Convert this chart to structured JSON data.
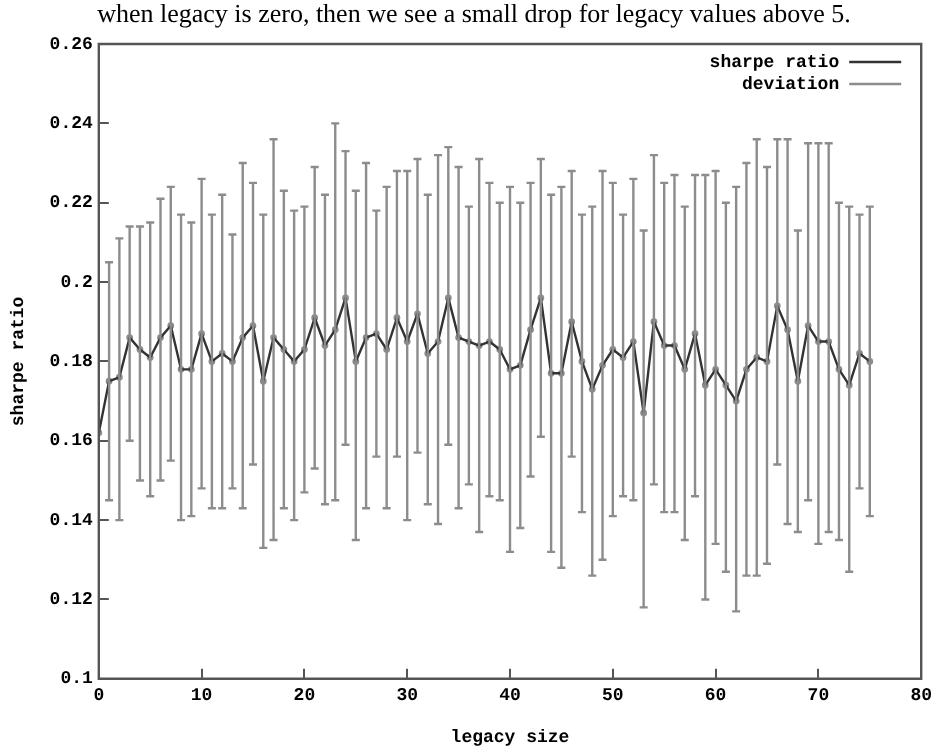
{
  "chart_data": {
    "type": "line",
    "xlabel": "legacy size",
    "ylabel": "sharpe ratio",
    "annotations": [
      "when legacy is zero, then we see a small drop for legacy values above 5."
    ],
    "x": [
      0,
      1,
      2,
      3,
      4,
      5,
      6,
      7,
      8,
      9,
      10,
      11,
      12,
      13,
      14,
      15,
      16,
      17,
      18,
      19,
      20,
      21,
      22,
      23,
      24,
      25,
      26,
      27,
      28,
      29,
      30,
      31,
      32,
      33,
      34,
      35,
      36,
      37,
      38,
      39,
      40,
      41,
      42,
      43,
      44,
      45,
      46,
      47,
      48,
      49,
      50,
      51,
      52,
      53,
      54,
      55,
      56,
      57,
      58,
      59,
      60,
      61,
      62,
      63,
      64,
      65,
      66,
      67,
      68,
      69,
      70,
      71,
      72,
      73,
      74,
      75
    ],
    "xlim": [
      0,
      80
    ],
    "xticks": [
      0,
      10,
      20,
      30,
      40,
      50,
      60,
      70,
      80
    ],
    "ylim": [
      0.1,
      0.26
    ],
    "yticks": [
      0.1,
      0.12,
      0.14,
      0.16,
      0.18,
      0.2,
      0.22,
      0.24,
      0.26
    ],
    "grid": false,
    "legend": "top right",
    "series": [
      {
        "name": "sharpe ratio",
        "color": "#333333",
        "values": [
          0.162,
          0.175,
          0.176,
          0.186,
          0.183,
          0.181,
          0.186,
          0.189,
          0.178,
          0.178,
          0.187,
          0.18,
          0.182,
          0.18,
          0.186,
          0.189,
          0.175,
          0.186,
          0.183,
          0.18,
          0.183,
          0.191,
          0.184,
          0.188,
          0.196,
          0.18,
          0.186,
          0.187,
          0.183,
          0.191,
          0.185,
          0.192,
          0.182,
          0.185,
          0.196,
          0.186,
          0.185,
          0.184,
          0.185,
          0.183,
          0.178,
          0.179,
          0.188,
          0.196,
          0.177,
          0.177,
          0.19,
          0.18,
          0.173,
          0.179,
          0.183,
          0.181,
          0.185,
          0.167,
          0.19,
          0.184,
          0.184,
          0.178,
          0.187,
          0.174,
          0.178,
          0.174,
          0.17,
          0.178,
          0.181,
          0.18,
          0.194,
          0.188,
          0.175,
          0.189,
          0.185,
          0.185,
          0.178,
          0.174,
          0.182,
          0.18
        ]
      },
      {
        "name": "deviation",
        "type": "scatter",
        "color": "#8c8c8c",
        "values": [
          0.162,
          0.175,
          0.176,
          0.186,
          0.183,
          0.181,
          0.186,
          0.189,
          0.178,
          0.178,
          0.187,
          0.18,
          0.182,
          0.18,
          0.186,
          0.189,
          0.175,
          0.186,
          0.183,
          0.18,
          0.183,
          0.191,
          0.184,
          0.188,
          0.196,
          0.18,
          0.186,
          0.187,
          0.183,
          0.191,
          0.185,
          0.192,
          0.182,
          0.185,
          0.196,
          0.186,
          0.185,
          0.184,
          0.185,
          0.183,
          0.178,
          0.179,
          0.188,
          0.196,
          0.177,
          0.177,
          0.19,
          0.18,
          0.173,
          0.179,
          0.183,
          0.181,
          0.185,
          0.167,
          0.19,
          0.184,
          0.184,
          0.178,
          0.187,
          0.174,
          0.178,
          0.174,
          0.17,
          0.178,
          0.181,
          0.18,
          0.194,
          0.188,
          0.175,
          0.189,
          0.185,
          0.185,
          0.178,
          0.174,
          0.182,
          0.18
        ],
        "errors": [
          null,
          [
            0.145,
            0.205
          ],
          [
            0.14,
            0.211
          ],
          [
            0.16,
            0.214
          ],
          [
            0.15,
            0.214
          ],
          [
            0.146,
            0.215
          ],
          [
            0.15,
            0.221
          ],
          [
            0.155,
            0.224
          ],
          [
            0.14,
            0.217
          ],
          [
            0.141,
            0.215
          ],
          [
            0.148,
            0.226
          ],
          [
            0.143,
            0.217
          ],
          [
            0.143,
            0.222
          ],
          [
            0.148,
            0.212
          ],
          [
            0.143,
            0.23
          ],
          [
            0.154,
            0.225
          ],
          [
            0.133,
            0.217
          ],
          [
            0.135,
            0.236
          ],
          [
            0.143,
            0.223
          ],
          [
            0.14,
            0.218
          ],
          [
            0.147,
            0.219
          ],
          [
            0.153,
            0.229
          ],
          [
            0.144,
            0.222
          ],
          [
            0.145,
            0.24
          ],
          [
            0.159,
            0.233
          ],
          [
            0.135,
            0.223
          ],
          [
            0.143,
            0.23
          ],
          [
            0.156,
            0.218
          ],
          [
            0.143,
            0.224
          ],
          [
            0.156,
            0.228
          ],
          [
            0.14,
            0.228
          ],
          [
            0.157,
            0.231
          ],
          [
            0.144,
            0.222
          ],
          [
            0.139,
            0.232
          ],
          [
            0.159,
            0.234
          ],
          [
            0.143,
            0.229
          ],
          [
            0.149,
            0.219
          ],
          [
            0.137,
            0.231
          ],
          [
            0.146,
            0.225
          ],
          [
            0.145,
            0.22
          ],
          [
            0.132,
            0.224
          ],
          [
            0.138,
            0.22
          ],
          [
            0.151,
            0.225
          ],
          [
            0.161,
            0.231
          ],
          [
            0.132,
            0.222
          ],
          [
            0.128,
            0.224
          ],
          [
            0.156,
            0.228
          ],
          [
            0.142,
            0.217
          ],
          [
            0.126,
            0.219
          ],
          [
            0.13,
            0.228
          ],
          [
            0.141,
            0.225
          ],
          [
            0.146,
            0.217
          ],
          [
            0.145,
            0.226
          ],
          [
            0.118,
            0.213
          ],
          [
            0.149,
            0.232
          ],
          [
            0.142,
            0.225
          ],
          [
            0.142,
            0.227
          ],
          [
            0.135,
            0.219
          ],
          [
            0.146,
            0.227
          ],
          [
            0.12,
            0.227
          ],
          [
            0.134,
            0.228
          ],
          [
            0.127,
            0.22
          ],
          [
            0.117,
            0.224
          ],
          [
            0.126,
            0.23
          ],
          [
            0.126,
            0.236
          ],
          [
            0.129,
            0.229
          ],
          [
            0.154,
            0.236
          ],
          [
            0.139,
            0.236
          ],
          [
            0.137,
            0.213
          ],
          [
            0.145,
            0.235
          ],
          [
            0.134,
            0.235
          ],
          [
            0.137,
            0.235
          ],
          [
            0.135,
            0.22
          ],
          [
            0.127,
            0.219
          ],
          [
            0.148,
            0.217
          ],
          [
            0.141,
            0.219
          ]
        ]
      }
    ]
  }
}
